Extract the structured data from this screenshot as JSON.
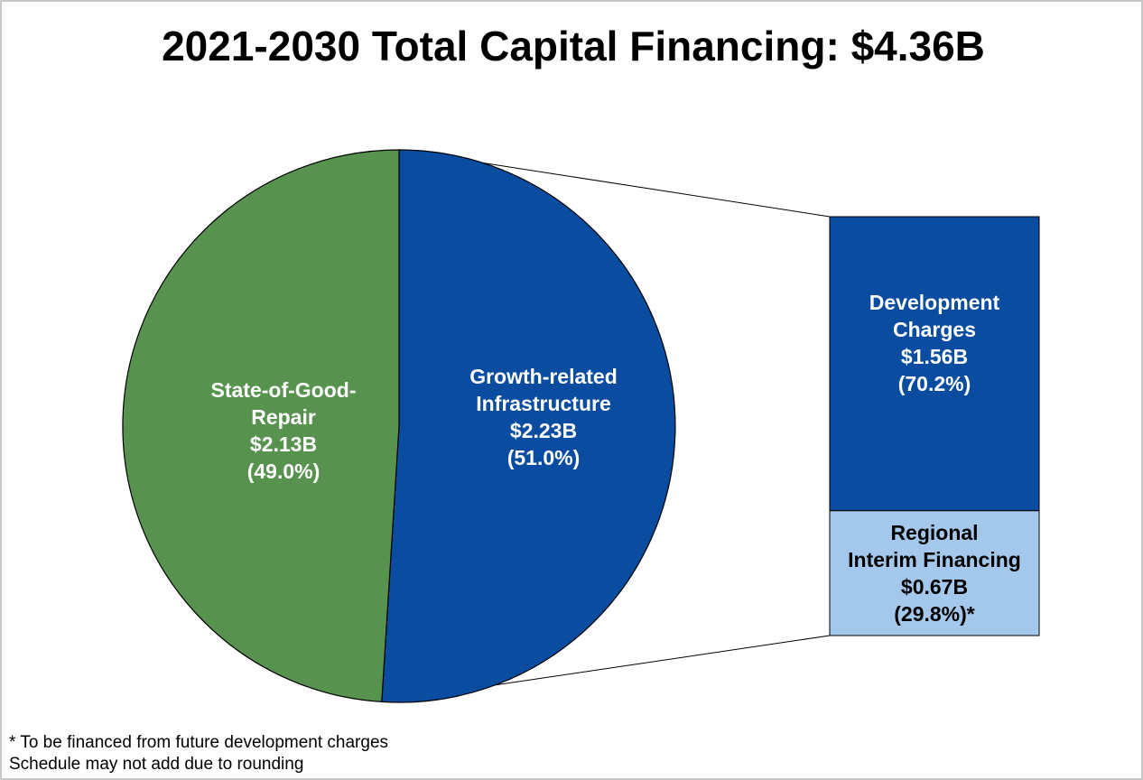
{
  "colors": {
    "green": "#57924E",
    "blue": "#0A4DA0",
    "light_blue": "#A4C8EB",
    "white": "#FFFFFF",
    "black": "#000000"
  },
  "chart_data": {
    "type": "pie",
    "title": "2021-2030 Total Capital Financing: $4.36B",
    "slices": [
      {
        "key": "sogr",
        "label_lines": [
          "State-of-Good-",
          "Repair"
        ],
        "value_label": "$2.13B",
        "percent_label": "(49.0%)",
        "value": 2.13,
        "percent": 49.0,
        "color": "#57924E"
      },
      {
        "key": "growth",
        "label_lines": [
          "Growth-related",
          "Infrastructure"
        ],
        "value_label": "$2.23B",
        "percent_label": "(51.0%)",
        "value": 2.23,
        "percent": 51.0,
        "color": "#0A4DA0"
      }
    ],
    "breakdown": {
      "of": "growth",
      "type": "stacked-bar",
      "segments": [
        {
          "key": "dc",
          "label_lines": [
            "Development",
            "Charges"
          ],
          "value_label": "$1.56B",
          "percent_label": "(70.2%)",
          "value": 1.56,
          "percent": 70.2,
          "color": "#0A4DA0"
        },
        {
          "key": "rif",
          "label_lines": [
            "Regional",
            "Interim Financing"
          ],
          "value_label": "$0.67B",
          "percent_label": "(29.8%)*",
          "value": 0.67,
          "percent": 29.8,
          "color": "#A4C8EB"
        }
      ]
    }
  },
  "footnotes": [
    "*  To be financed from future development charges",
    "Schedule may not add due to rounding"
  ]
}
